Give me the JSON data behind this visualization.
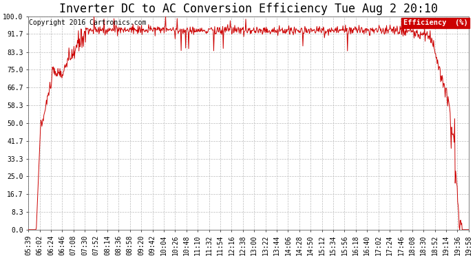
{
  "title": "Inverter DC to AC Conversion Efficiency Tue Aug 2 20:10",
  "copyright": "Copyright 2016 Cartronics.com",
  "legend_label": "Efficiency  (%)",
  "legend_bg": "#cc0000",
  "legend_text_color": "#ffffff",
  "line_color": "#cc0000",
  "bg_color": "#ffffff",
  "plot_bg_color": "#ffffff",
  "grid_color": "#bbbbbb",
  "yticks": [
    0.0,
    8.3,
    16.7,
    25.0,
    33.3,
    41.7,
    50.0,
    58.3,
    66.7,
    75.0,
    83.3,
    91.7,
    100.0
  ],
  "ytick_labels": [
    "0.0",
    "8.3",
    "16.7",
    "25.0",
    "33.3",
    "41.7",
    "50.0",
    "58.3",
    "66.7",
    "75.0",
    "83.3",
    "91.7",
    "100.0"
  ],
  "xtick_labels": [
    "05:39",
    "06:02",
    "06:24",
    "06:46",
    "07:08",
    "07:30",
    "07:52",
    "08:14",
    "08:36",
    "08:58",
    "09:20",
    "09:42",
    "10:04",
    "10:26",
    "10:48",
    "11:10",
    "11:32",
    "11:54",
    "12:16",
    "12:38",
    "13:00",
    "13:22",
    "13:44",
    "14:06",
    "14:28",
    "14:50",
    "15:12",
    "15:34",
    "15:56",
    "16:18",
    "16:40",
    "17:02",
    "17:24",
    "17:46",
    "18:08",
    "18:30",
    "18:52",
    "19:14",
    "19:36",
    "19:58"
  ],
  "title_fontsize": 12,
  "copyright_fontsize": 7,
  "axis_fontsize": 7,
  "ylim": [
    0.0,
    100.0
  ]
}
